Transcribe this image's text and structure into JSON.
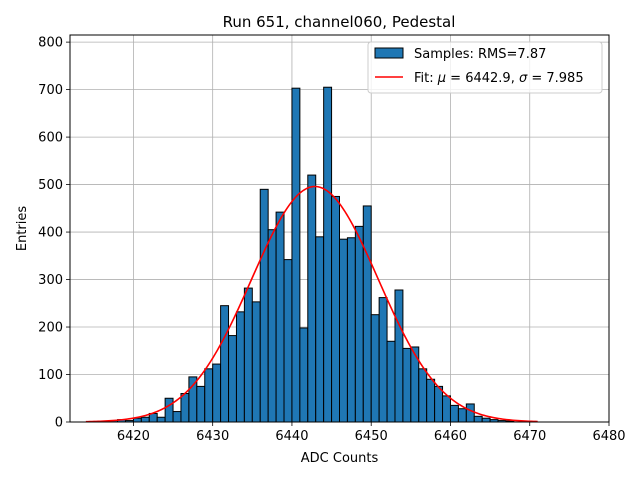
{
  "chart_data": {
    "type": "bar",
    "title": "Run 651, channel060, Pedestal",
    "xlabel": "ADC Counts",
    "ylabel": "Entries",
    "xlim": [
      6412,
      6480
    ],
    "ylim": [
      0,
      815
    ],
    "xticks": [
      6420,
      6430,
      6440,
      6450,
      6460,
      6470,
      6480
    ],
    "yticks": [
      0,
      100,
      200,
      300,
      400,
      500,
      600,
      700,
      800
    ],
    "grid": true,
    "legend_position": "top-right",
    "bin_width": 1,
    "bins": [
      6417,
      6418,
      6419,
      6420,
      6421,
      6422,
      6423,
      6424,
      6425,
      6426,
      6427,
      6428,
      6429,
      6430,
      6431,
      6432,
      6433,
      6434,
      6435,
      6436,
      6437,
      6438,
      6439,
      6440,
      6441,
      6442,
      6443,
      6444,
      6445,
      6446,
      6447,
      6448,
      6449,
      6450,
      6451,
      6452,
      6453,
      6454,
      6455,
      6456,
      6457,
      6458,
      6459,
      6460,
      6461,
      6462,
      6463,
      6464,
      6465,
      6466,
      6467
    ],
    "counts": [
      3,
      5,
      3,
      8,
      10,
      18,
      10,
      50,
      22,
      60,
      95,
      75,
      112,
      122,
      245,
      182,
      232,
      282,
      253,
      490,
      405,
      442,
      342,
      703,
      198,
      520,
      390,
      705,
      475,
      385,
      388,
      412,
      455,
      226,
      262,
      170,
      278,
      155,
      158,
      112,
      90,
      75,
      55,
      35,
      28,
      38,
      12,
      8,
      5,
      3,
      2
    ],
    "series": [
      {
        "name": "Samples: RMS=7.87",
        "kind": "histogram",
        "color": "#1f77b4"
      },
      {
        "name": "Fit: μ = 6442.9, σ = 7.985",
        "kind": "line",
        "color": "#ff0000",
        "mu": 6442.9,
        "sigma": 7.985,
        "amplitude": 496,
        "x_range": [
          6414,
          6471
        ]
      }
    ],
    "legend": {
      "hist_prefix": "Samples: RMS=7.87",
      "fit_prefix": "Fit: ",
      "mu_symbol": "μ",
      "mu_text": " = 6442.9, ",
      "sigma_symbol": "σ",
      "sigma_text": " = 7.985"
    }
  }
}
